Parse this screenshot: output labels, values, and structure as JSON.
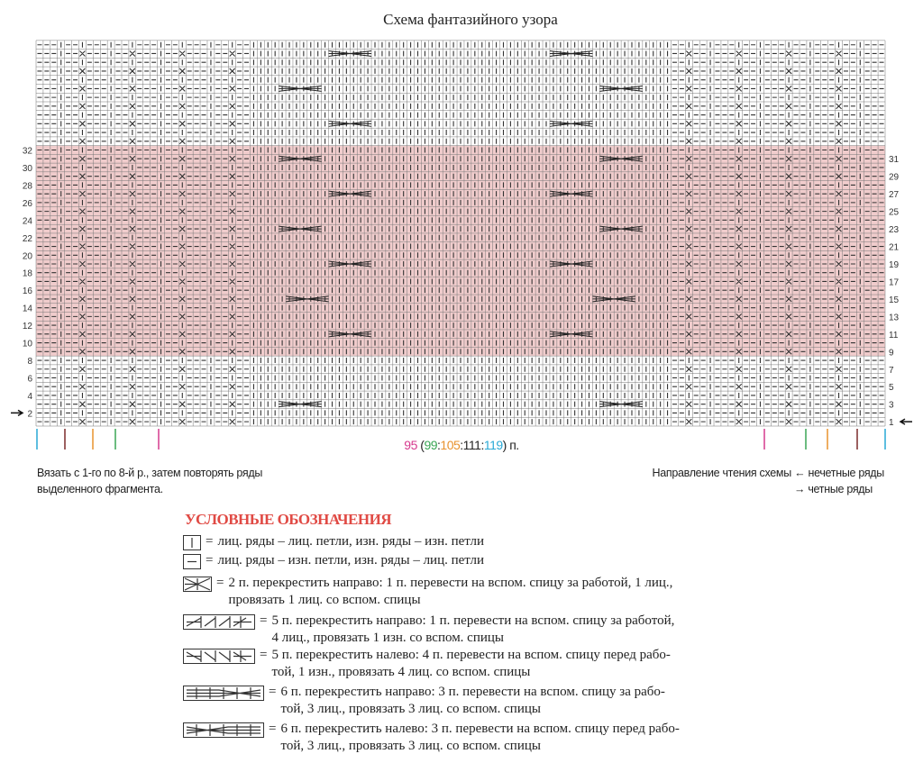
{
  "title": "Схема фантазийного узора",
  "row_labels_left": [
    "2",
    "4",
    "6",
    "8",
    "10",
    "12",
    "14",
    "16",
    "18",
    "20",
    "22",
    "24",
    "26",
    "28",
    "30",
    "32"
  ],
  "row_labels_right": [
    "1",
    "3",
    "5",
    "7",
    "9",
    "11",
    "13",
    "15",
    "17",
    "19",
    "21",
    "23",
    "25",
    "27",
    "29",
    "31"
  ],
  "highlight_rows": {
    "from": 9,
    "to": 32
  },
  "total_rows": 44,
  "total_columns": 119,
  "colors": {
    "highlight": "#f0cccc",
    "size1": "#d63a8e",
    "size2": "#3aa655",
    "size3": "#e8922e",
    "size4": "#7a2a2a",
    "size5": "#29a9d6",
    "legend_title": "#e04a44"
  },
  "stitch_count": {
    "s1": "95",
    "open": " (",
    "s2": "99",
    "sep1": ":",
    "s3": "105",
    "sep2": ":",
    "s4": "111",
    "sep3": ":",
    "s5": "119",
    "close": ") п."
  },
  "notes": {
    "repeat": "Вязать с 1-го по 8-й р., затем повторять ряды\nвыделенного фрагмента.",
    "direction_label": "Направление чтения схемы",
    "odd_rows": "нечетные ряды",
    "even_rows": "четные ряды"
  },
  "legend": {
    "title": "УСЛОВНЫЕ ОБОЗНАЧЕНИЯ",
    "items": [
      {
        "symbol": "knit-icon",
        "text": "лиц. ряды – лиц. петли, изн. ряды – изн. петли"
      },
      {
        "symbol": "purl-icon",
        "text": "лиц. ряды – изн. петли, изн. ряды – лиц. петли"
      },
      {
        "symbol": "cross-2-right-icon",
        "text": "2 п. перекрестить направо: 1 п. перевести на вспом. спицу за работой, 1 лиц.,\nпровязать 1 лиц. со вспом. спицы"
      },
      {
        "symbol": "cross-5-right-icon",
        "text": "5 п. перекрестить направо: 1 п. перевести на вспом. спицу за работой,\n4 лиц., провязать 1 изн. со вспом. спицы"
      },
      {
        "symbol": "cross-5-left-icon",
        "text": "5 п. перекрестить налево: 4 п. перевести на вспом. спицу перед рабо-\nтой, 1 изн., провязать 4 лиц. со вспом. спицы"
      },
      {
        "symbol": "cross-6-right-icon",
        "text": "6 п. перекрестить направо: 3 п. перевести на вспом. спицу за рабо-\nтой, 3 лиц., провязать 3 лиц. со вспом. спицы"
      },
      {
        "symbol": "cross-6-left-icon",
        "text": "6 п. перекрестить налево: 3 п. перевести на вспом. спицу перед рабо-\nтой, 3 лиц., провязать 3 лиц. со вспом. спицы"
      }
    ]
  }
}
